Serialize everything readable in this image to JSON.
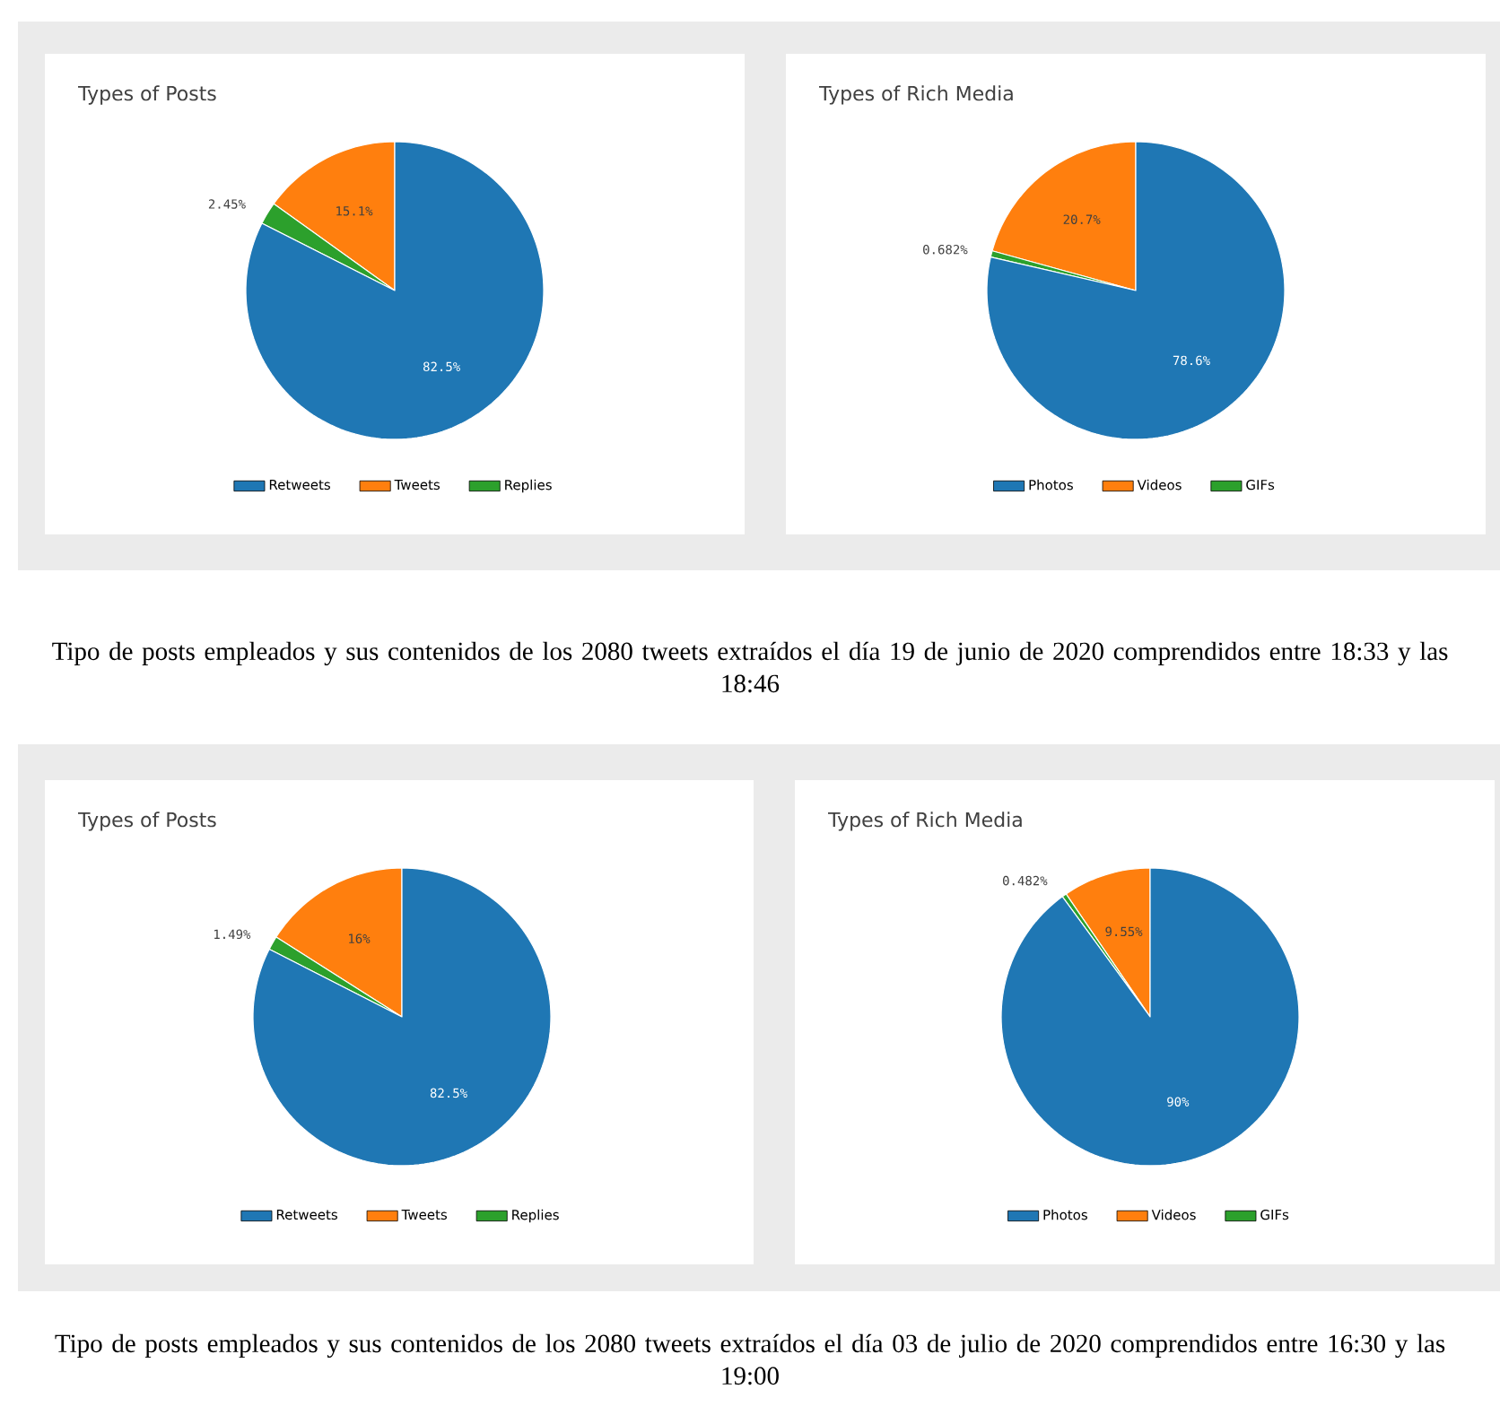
{
  "chart_data": [
    {
      "type": "pie",
      "title": "Types of Posts",
      "categories": [
        "Retweets",
        "Tweets",
        "Replies"
      ],
      "values": [
        82.5,
        15.1,
        2.45
      ],
      "colors": [
        "#1f77b4",
        "#ff7f0e",
        "#2ca02c"
      ],
      "value_labels": [
        "82.5%",
        "15.1%",
        "2.45%"
      ],
      "legend": "bottom",
      "annotations": [
        "Tipo de posts empleados y sus contenidos de los 2080 tweets extraídos el día 19 de junio de 2020 comprendidos entre 18:33 y las 18:46"
      ]
    },
    {
      "type": "pie",
      "title": "Types of Rich Media",
      "categories": [
        "Photos",
        "Videos",
        "GIFs"
      ],
      "values": [
        78.6,
        20.7,
        0.682
      ],
      "colors": [
        "#1f77b4",
        "#ff7f0e",
        "#2ca02c"
      ],
      "value_labels": [
        "78.6%",
        "20.7%",
        "0.682%"
      ],
      "legend": "bottom"
    },
    {
      "type": "pie",
      "title": "Types of Posts",
      "categories": [
        "Retweets",
        "Tweets",
        "Replies"
      ],
      "values": [
        82.5,
        16,
        1.49
      ],
      "colors": [
        "#1f77b4",
        "#ff7f0e",
        "#2ca02c"
      ],
      "value_labels": [
        "82.5%",
        "16%",
        "1.49%"
      ],
      "legend": "bottom",
      "annotations": [
        "Tipo de posts empleados y sus contenidos de los 2080 tweets extraídos el día 03 de julio de 2020 comprendidos entre 16:30 y las 19:00"
      ]
    },
    {
      "type": "pie",
      "title": "Types of Rich Media",
      "categories": [
        "Photos",
        "Videos",
        "GIFs"
      ],
      "values": [
        90,
        9.55,
        0.482
      ],
      "colors": [
        "#1f77b4",
        "#ff7f0e",
        "#2ca02c"
      ],
      "value_labels": [
        "90%",
        "9.55%",
        "0.482%"
      ],
      "legend": "bottom"
    }
  ]
}
